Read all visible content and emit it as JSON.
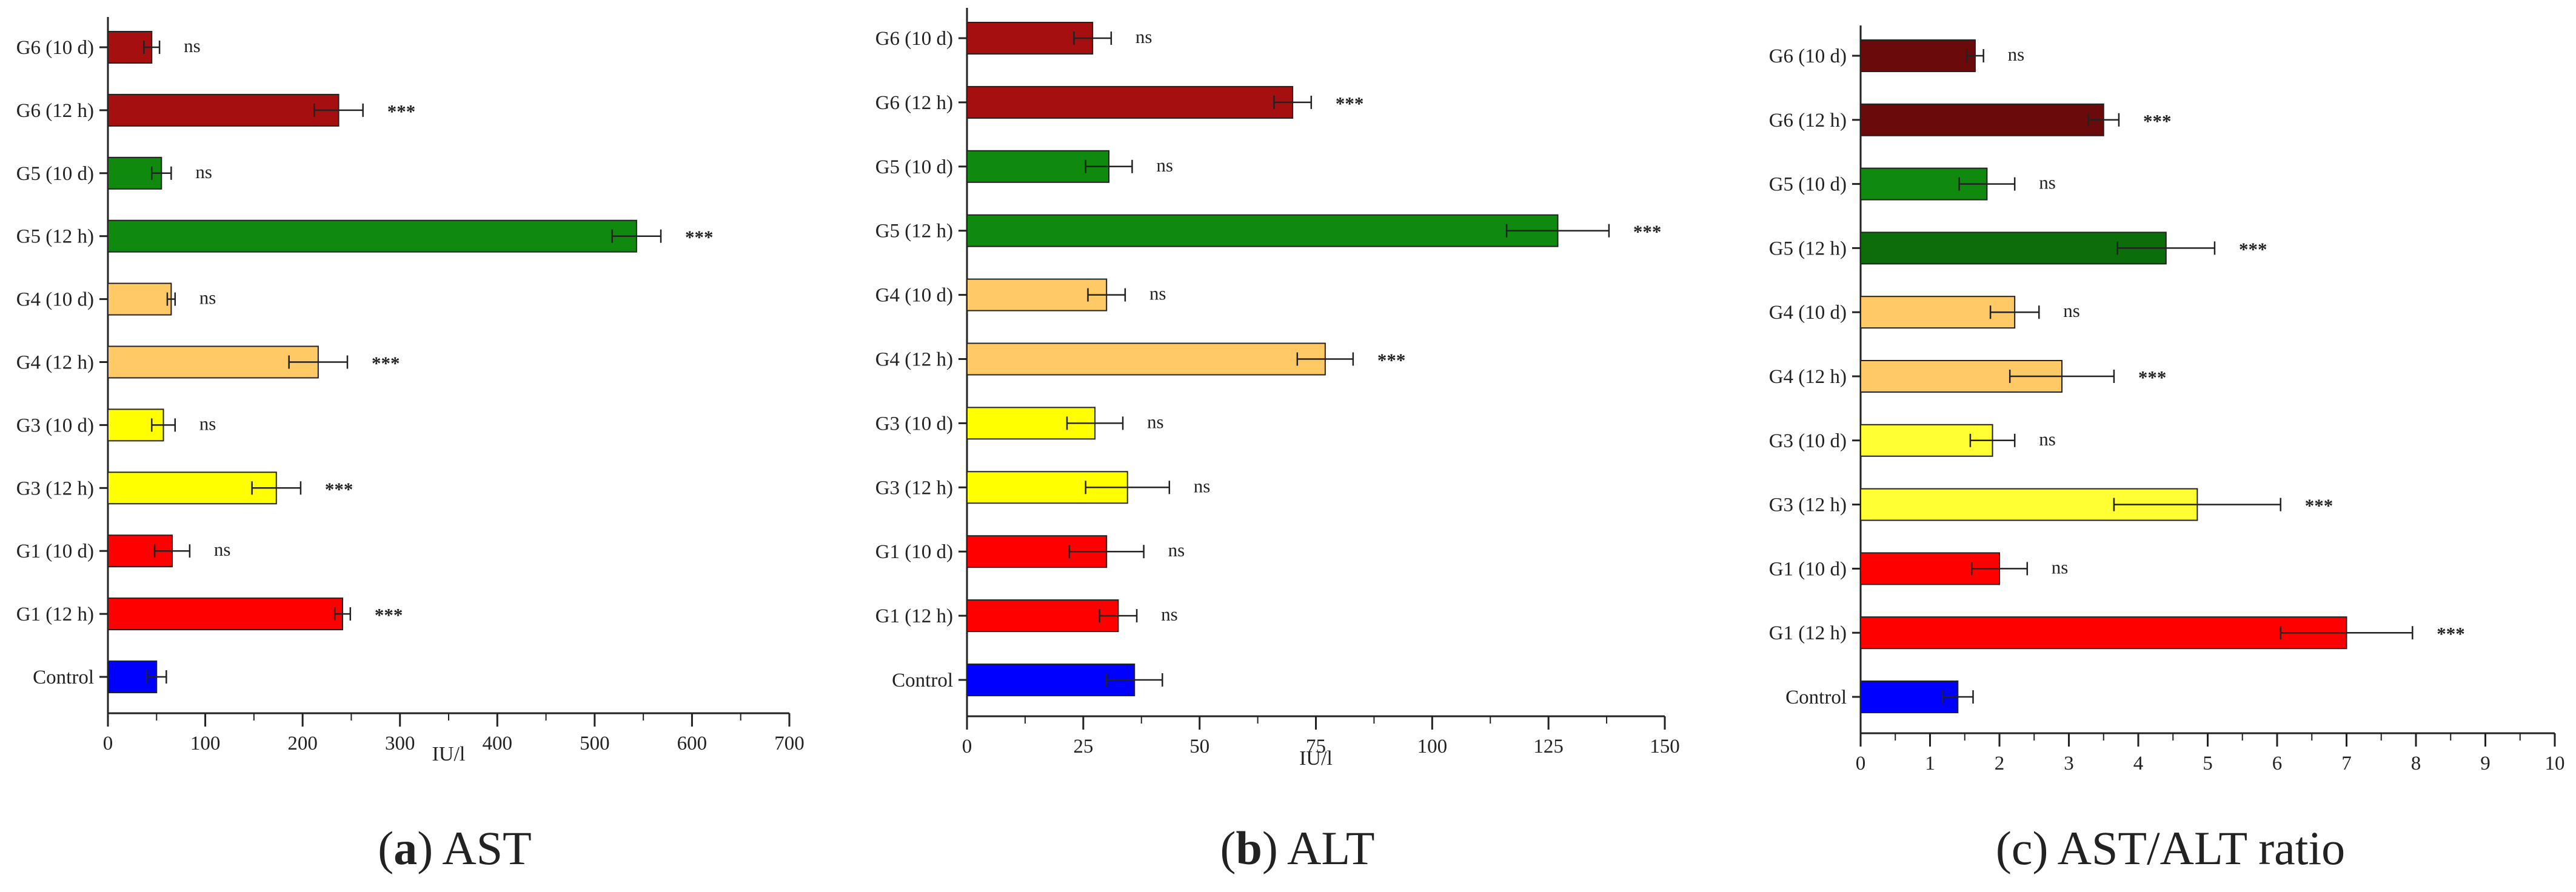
{
  "chart_data": [
    {
      "type": "bar",
      "orientation": "horizontal",
      "caption_letter": "a",
      "caption_text": "AST",
      "xlabel": "IU/l",
      "xlim": [
        0,
        700
      ],
      "xticks": [
        0,
        100,
        200,
        300,
        400,
        500,
        600,
        700
      ],
      "categories": [
        "G6 (10 d)",
        "G6 (12 h)",
        "G5 (10 d)",
        "G5 (12 h)",
        "G4 (10 d)",
        "G4 (12 h)",
        "G3 (10 d)",
        "G3 (12 h)",
        "G1 (10 d)",
        "G1 (12 h)",
        "Control"
      ],
      "values": [
        45,
        237,
        55,
        543,
        65,
        216,
        57,
        173,
        66,
        241,
        50
      ],
      "errors": [
        8,
        25,
        10,
        25,
        4,
        30,
        12,
        25,
        18,
        8,
        10
      ],
      "significance": [
        "ns",
        "***",
        "ns",
        "***",
        "ns",
        "***",
        "ns",
        "***",
        "ns",
        "***",
        ""
      ],
      "colors": [
        "#a50f0f",
        "#a50f0f",
        "#0f8a0f",
        "#0f8a0f",
        "#ffc966",
        "#ffc966",
        "#ffff00",
        "#ffff00",
        "#ff0000",
        "#ff0000",
        "#0000ff"
      ],
      "grid": false
    },
    {
      "type": "bar",
      "orientation": "horizontal",
      "caption_letter": "b",
      "caption_text": "ALT",
      "xlabel": "IU/l",
      "xlim": [
        0,
        150
      ],
      "xticks": [
        0,
        25,
        50,
        75,
        100,
        125,
        150
      ],
      "categories": [
        "G6 (10 d)",
        "G6 (12 h)",
        "G5 (10 d)",
        "G5 (12 h)",
        "G4 (10 d)",
        "G4 (12 h)",
        "G3 (10 d)",
        "G3 (12 h)",
        "G1 (10 d)",
        "G1 (12 h)",
        "Control"
      ],
      "values": [
        27,
        70,
        30.5,
        127,
        30,
        77,
        27.5,
        34.5,
        30,
        32.5,
        36
      ],
      "errors": [
        4,
        4,
        5,
        11,
        4,
        6,
        6,
        9,
        8,
        4,
        6
      ],
      "significance": [
        "ns",
        "***",
        "ns",
        "***",
        "ns",
        "***",
        "ns",
        "ns",
        "ns",
        "ns",
        ""
      ],
      "colors": [
        "#a50f0f",
        "#a50f0f",
        "#0f8a0f",
        "#0f8a0f",
        "#ffc966",
        "#ffc966",
        "#ffff00",
        "#ffff00",
        "#ff0000",
        "#ff0000",
        "#0000ff"
      ],
      "grid": false
    },
    {
      "type": "bar",
      "orientation": "horizontal",
      "caption_letter": "",
      "caption_text": "(c) AST/ALT ratio",
      "xlabel": "",
      "xlim": [
        0,
        10
      ],
      "xticks": [
        0,
        1,
        2,
        3,
        4,
        5,
        6,
        7,
        8,
        9,
        10
      ],
      "categories": [
        "G6 (10 d)",
        "G6 (12 h)",
        "G5 (10 d)",
        "G5 (12 h)",
        "G4 (10 d)",
        "G4 (12 h)",
        "G3 (10 d)",
        "G3 (12 h)",
        "G1 (10 d)",
        "G1 (12 h)",
        "Control"
      ],
      "values": [
        1.65,
        3.5,
        1.82,
        4.4,
        2.22,
        2.9,
        1.9,
        4.85,
        2.0,
        7.0,
        1.4
      ],
      "errors": [
        0.12,
        0.22,
        0.4,
        0.7,
        0.35,
        0.75,
        0.32,
        1.2,
        0.4,
        0.95,
        0.22
      ],
      "significance": [
        "ns",
        "***",
        "ns",
        "***",
        "ns",
        "***",
        "ns",
        "***",
        "ns",
        "***",
        ""
      ],
      "colors": [
        "#6b0a0a",
        "#6b0a0a",
        "#0f8a0f",
        "#0b6e0b",
        "#ffc966",
        "#ffc966",
        "#ffff33",
        "#ffff33",
        "#ff0000",
        "#ff0000",
        "#0000ff"
      ],
      "grid": false
    }
  ]
}
